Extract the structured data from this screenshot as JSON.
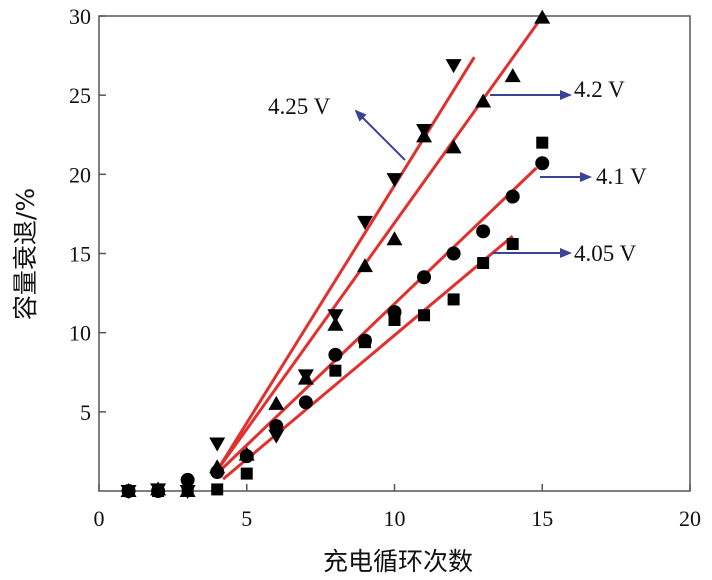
{
  "chart_data": {
    "type": "scatter",
    "title": "",
    "xlabel": "充电循环次数",
    "ylabel": "容量衰退/%",
    "xlim": [
      0,
      20
    ],
    "ylim": [
      0,
      30
    ],
    "xticks": [
      0,
      5,
      10,
      15,
      20
    ],
    "yticks": [
      5,
      10,
      15,
      20,
      25,
      30
    ],
    "grid": false,
    "colors": {
      "fit": "#e0312f",
      "arrow": "#3b4394",
      "marker": "#000000"
    },
    "series": [
      {
        "name": "4.25 V",
        "marker": "triangle-down",
        "x": [
          1,
          2,
          3,
          4,
          6,
          7,
          8,
          9,
          10,
          11,
          12
        ],
        "y": [
          0,
          0.1,
          0,
          3.0,
          3.5,
          7.3,
          11.1,
          17.0,
          19.7,
          22.8,
          26.9
        ],
        "fit": [
          [
            4,
            1.3
          ],
          [
            12.7,
            27.4
          ]
        ]
      },
      {
        "name": "4.2 V",
        "marker": "triangle-up",
        "x": [
          1,
          2,
          3,
          4,
          5,
          6,
          7,
          8,
          9,
          10,
          11,
          12,
          13,
          14,
          15
        ],
        "y": [
          0,
          0.1,
          0,
          1.5,
          2.3,
          5.5,
          7.1,
          10.5,
          14.2,
          15.9,
          22.4,
          21.7,
          24.6,
          26.2,
          29.9
        ],
        "fit": [
          [
            4,
            1.3
          ],
          [
            14.9,
            29.7
          ]
        ]
      },
      {
        "name": "4.1 V",
        "marker": "circle",
        "x": [
          1,
          2,
          3,
          4,
          5,
          6,
          7,
          8,
          9,
          10,
          11,
          12,
          13,
          14,
          15
        ],
        "y": [
          0,
          0,
          0.7,
          1.2,
          2.2,
          4.1,
          5.6,
          8.6,
          9.5,
          11.3,
          13.5,
          15.0,
          16.4,
          18.6,
          20.7
        ],
        "fit": [
          [
            4.05,
            1.2
          ],
          [
            14.8,
            20.4
          ]
        ]
      },
      {
        "name": "4.05 V",
        "marker": "square",
        "x": [
          1,
          2,
          3,
          4,
          5,
          8,
          9,
          10,
          11,
          12,
          13,
          14,
          15
        ],
        "y": [
          0,
          0,
          0,
          0.1,
          1.1,
          7.6,
          9.4,
          10.8,
          11.1,
          12.1,
          14.4,
          15.6,
          22.0
        ],
        "fit": [
          [
            4.2,
            0.75
          ],
          [
            14.0,
            16.1
          ]
        ]
      }
    ],
    "annotations": [
      {
        "text": "4.25 V",
        "series": "4.25 V"
      },
      {
        "text": "4.2 V",
        "series": "4.2 V"
      },
      {
        "text": "4.1 V",
        "series": "4.1 V"
      },
      {
        "text": "4.05 V",
        "series": "4.05 V"
      }
    ]
  }
}
